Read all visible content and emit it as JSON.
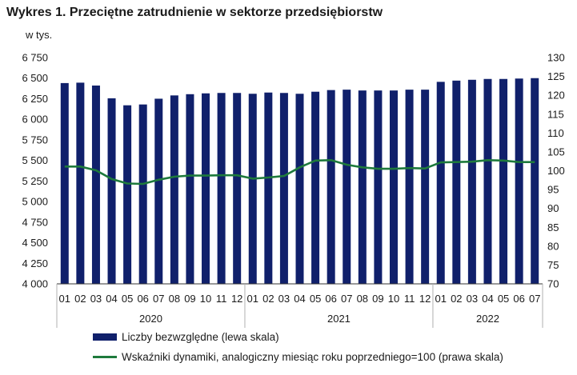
{
  "title": "Wykres 1. Przeciętne zatrudnienie w sektorze przedsiębiorstw",
  "unit_label": "w tys.",
  "colors": {
    "bar": "#10206b",
    "line": "#1e7a3c",
    "axis": "#333333",
    "divider": "#b0b0b0"
  },
  "chart_data": {
    "type": "bar+line",
    "categories": [
      "01",
      "02",
      "03",
      "04",
      "05",
      "06",
      "07",
      "08",
      "09",
      "10",
      "11",
      "12",
      "01",
      "02",
      "03",
      "04",
      "05",
      "06",
      "07",
      "08",
      "09",
      "10",
      "11",
      "12",
      "01",
      "02",
      "03",
      "04",
      "05",
      "06",
      "07"
    ],
    "years": [
      {
        "label": "2020",
        "count": 12
      },
      {
        "label": "2021",
        "count": 12
      },
      {
        "label": "2022",
        "count": 7
      }
    ],
    "y_left": {
      "min": 4000,
      "max": 6750,
      "ticks": [
        "4 000",
        "4 250",
        "4 500",
        "4 750",
        "5 000",
        "5 250",
        "5 500",
        "5 750",
        "6 000",
        "6 250",
        "6 500",
        "6 750"
      ]
    },
    "y_right": {
      "min": 70,
      "max": 130,
      "ticks": [
        "70",
        "75",
        "80",
        "85",
        "90",
        "95",
        "100",
        "105",
        "110",
        "115",
        "120",
        "125",
        "130"
      ]
    },
    "series": [
      {
        "name": "Liczby bezwzględne (lewa skala)",
        "type": "bar",
        "axis": "left",
        "values": [
          6440,
          6445,
          6410,
          6255,
          6170,
          6180,
          6250,
          6290,
          6305,
          6315,
          6320,
          6320,
          6310,
          6325,
          6320,
          6310,
          6335,
          6355,
          6360,
          6350,
          6350,
          6350,
          6360,
          6360,
          6455,
          6470,
          6480,
          6490,
          6490,
          6495,
          6500
        ]
      },
      {
        "name": "Wskaźniki dynamiki, analogiczny miesiąc roku poprzedniego=100 (prawa skala)",
        "type": "line",
        "axis": "right",
        "values": [
          101.1,
          101.1,
          100.1,
          97.8,
          96.6,
          96.5,
          97.6,
          98.4,
          98.7,
          98.7,
          98.8,
          98.8,
          97.9,
          98.2,
          98.6,
          100.9,
          102.7,
          102.8,
          101.6,
          100.9,
          100.5,
          100.5,
          100.7,
          100.6,
          102.2,
          102.3,
          102.4,
          102.8,
          102.7,
          102.3,
          102.3
        ]
      }
    ]
  }
}
